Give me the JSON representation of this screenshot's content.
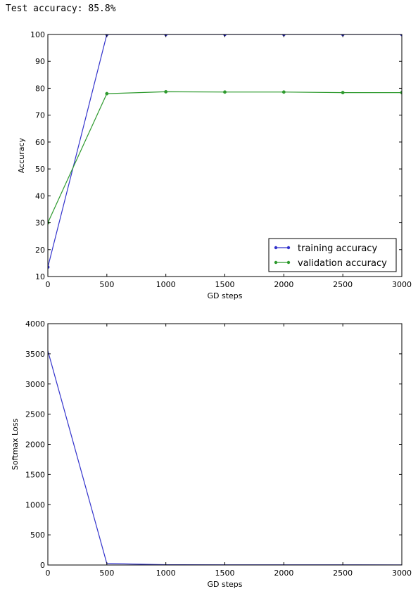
{
  "output": {
    "test_accuracy_line": "Test accuracy: 85.8%"
  },
  "colors": {
    "training": "#3333cc",
    "validation": "#2e9a2e"
  },
  "chart_data": [
    {
      "type": "line",
      "title": "",
      "xlabel": "GD steps",
      "ylabel": "Accuracy",
      "xlim": [
        0,
        3000
      ],
      "ylim": [
        10,
        100
      ],
      "xticks": [
        "0",
        "500",
        "1000",
        "1500",
        "2000",
        "2500",
        "3000"
      ],
      "yticks": [
        "10",
        "20",
        "30",
        "40",
        "50",
        "60",
        "70",
        "80",
        "90",
        "100"
      ],
      "grid": false,
      "legend": "bottom-right",
      "x": [
        0,
        500,
        1000,
        1500,
        2000,
        2500,
        3000
      ],
      "series": [
        {
          "name": "training accuracy",
          "color": "#3333cc",
          "marker": true,
          "values": [
            13.5,
            100,
            100,
            100,
            100,
            100,
            100
          ]
        },
        {
          "name": "validation accuracy",
          "color": "#2e9a2e",
          "marker": true,
          "values": [
            30,
            78,
            78.7,
            78.6,
            78.6,
            78.4,
            78.4
          ]
        }
      ]
    },
    {
      "type": "line",
      "title": "",
      "xlabel": "GD steps",
      "ylabel": "Softmax Loss",
      "xlim": [
        0,
        3000
      ],
      "ylim": [
        0,
        4000
      ],
      "xticks": [
        "0",
        "500",
        "1000",
        "1500",
        "2000",
        "2500",
        "3000"
      ],
      "yticks": [
        "0",
        "500",
        "1000",
        "1500",
        "2000",
        "2500",
        "3000",
        "3500",
        "4000"
      ],
      "grid": false,
      "legend": "none",
      "x": [
        0,
        500,
        1000,
        1500,
        2000,
        2500,
        3000
      ],
      "series": [
        {
          "name": "",
          "color": "#3333cc",
          "marker": false,
          "values": [
            3550,
            25,
            5,
            4,
            3,
            3,
            2
          ]
        }
      ]
    }
  ]
}
